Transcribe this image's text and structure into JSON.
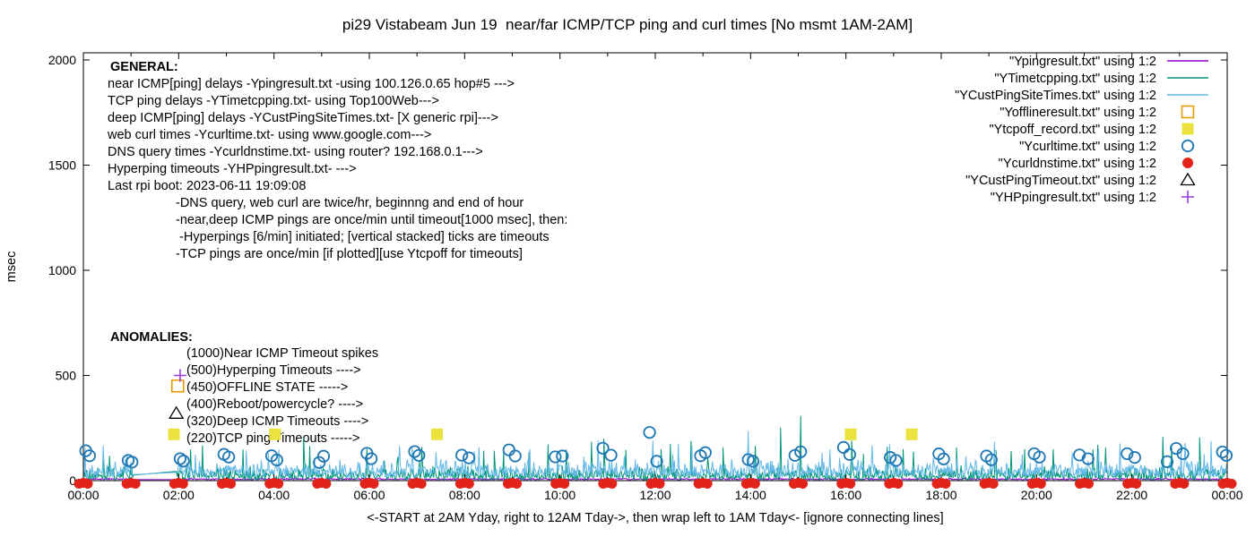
{
  "title": "pi29 Vistabeam Jun 19  near/far ICMP/TCP ping and curl times [No msmt 1AM-2AM]",
  "axes": {
    "y_label": "msec",
    "x_label": "<-START at 2AM Yday, right to 12AM Tday->, then wrap left to 1AM Tday<- [ignore connecting lines]",
    "y_ticks": [
      "0",
      "500",
      "1000",
      "1500",
      "2000"
    ],
    "x_tick_labels": [
      "00:00",
      "02:00",
      "04:00",
      "06:00",
      "08:00",
      "10:00",
      "12:00",
      "14:00",
      "16:00",
      "18:00",
      "20:00",
      "22:00",
      "00:00"
    ]
  },
  "legend": {
    "entries": [
      {
        "label": "\"Ypingresult.txt\" using 1:2",
        "marker": "line",
        "color": "#9400d3"
      },
      {
        "label": "\"YTimetcpping.txt\" using 1:2",
        "marker": "line",
        "color": "#009578"
      },
      {
        "label": "\"YCustPingSiteTimes.txt\" using 1:2",
        "marker": "line",
        "color": "#63b8e8"
      },
      {
        "label": "\"Yofflineresult.txt\" using 1:2",
        "marker": "square-open",
        "color": "#e69b00"
      },
      {
        "label": "\"Ytcpoff_record.txt\" using 1:2",
        "marker": "square-filled",
        "color": "#ebe13f"
      },
      {
        "label": "\"Ycurltime.txt\" using 1:2",
        "marker": "circle-open",
        "color": "#1f78b4"
      },
      {
        "label": "\"Ycurldnstime.txt\" using 1:2",
        "marker": "circle-filled",
        "color": "#e2231a"
      },
      {
        "label": "\"YCustPingTimeout.txt\" using 1:2",
        "marker": "triangle-open",
        "color": "#000000"
      },
      {
        "label": "\"YHPpingresult.txt\" using 1:2",
        "marker": "plus",
        "color": "#9a3be0"
      }
    ]
  },
  "notes_general": {
    "heading": "GENERAL:",
    "lines": [
      "near ICMP[ping] delays -Ypingresult.txt -using 100.126.0.65 hop#5 --->",
      "TCP ping delays -YTimetcpping.txt- using Top100Web--->",
      "deep ICMP[ping] delays -YCustPingSiteTimes.txt- [X generic rpi]--->",
      "web curl times -Ycurltime.txt- using www.google.com--->",
      "DNS query times -Ycurldnstime.txt- using router? 192.168.0.1--->",
      "Hyperping timeouts -YHPpingresult.txt- --->",
      "Last rpi boot: 2023-06-11 19:09:08"
    ],
    "indented_lines": [
      "-DNS query, web curl are twice/hr, beginnng and end of hour",
      "-near,deep ICMP pings are once/min until timeout[1000 msec], then:",
      " -Hyperpings [6/min] initiated; [vertical stacked] ticks are timeouts",
      "-TCP pings are once/min [if plotted][use Ytcpoff for timeouts]"
    ]
  },
  "notes_anomalies": {
    "heading": "ANOMALIES:",
    "lines": [
      "(1000)Near ICMP Timeout spikes",
      "(500)Hyperping Timeouts ---->",
      "(450)OFFLINE STATE ----->",
      "(400)Reboot/powercycle? ---->",
      "(320)Deep ICMP Timeouts ---->",
      "(220)TCP ping Timeouts ----->"
    ]
  },
  "chart_data": {
    "type": "line",
    "title": "pi29 Vistabeam Jun 19  near/far ICMP/TCP ping and curl times [No msmt 1AM-2AM]",
    "xlabel": "<-START at 2AM Yday, right to 12AM Tday->, then wrap left to 1AM Tday<- [ignore connecting lines]",
    "ylabel": "msec",
    "x_unit": "hours",
    "xlim_hours": [
      0,
      24
    ],
    "ylim": [
      0,
      2000
    ],
    "grid": false,
    "legend_position": "top-right-inside",
    "measurement_gap_hours": [
      1.05,
      1.95
    ],
    "noise_seed": 20230619,
    "series": [
      {
        "name": "Ypingresult.txt",
        "style": "line",
        "color": "#9400d3",
        "kind": "noise",
        "base": 4,
        "amp": 9,
        "high_chance": 0,
        "high_min": 0,
        "high_span": 0,
        "spikes": []
      },
      {
        "name": "YTimetcpping.txt",
        "style": "line",
        "color": "#009578",
        "kind": "noise",
        "base": 2,
        "amp": 72,
        "high_chance": 0.016,
        "high_min": 85,
        "high_span": 90,
        "spikes": [
          [
            0.42,
            133
          ],
          [
            2.5,
            168
          ],
          [
            3.35,
            148
          ],
          [
            4.62,
            205
          ],
          [
            5.95,
            152
          ],
          [
            7.1,
            160
          ],
          [
            8.62,
            142
          ],
          [
            9.35,
            135
          ],
          [
            9.75,
            172
          ],
          [
            10.66,
            185
          ],
          [
            10.92,
            200
          ],
          [
            12.12,
            150
          ],
          [
            12.75,
            188
          ],
          [
            13.42,
            158
          ],
          [
            14.1,
            165
          ],
          [
            14.63,
            252
          ],
          [
            15.05,
            308
          ],
          [
            16.12,
            190
          ],
          [
            17.2,
            150
          ],
          [
            18.32,
            158
          ],
          [
            19.12,
            144
          ],
          [
            20.35,
            150
          ],
          [
            21.45,
            158
          ],
          [
            22.65,
            208
          ],
          [
            23.42,
            205
          ]
        ]
      },
      {
        "name": "YCustPingSiteTimes.txt",
        "style": "line",
        "color": "#63b8e8",
        "kind": "noise",
        "base": 15,
        "amp": 95,
        "high_chance": 0.022,
        "high_min": 108,
        "high_span": 85,
        "spikes": [
          [
            4.1,
            148
          ],
          [
            8.2,
            140
          ],
          [
            13.95,
            235
          ],
          [
            16.55,
            168
          ],
          [
            21.3,
            150
          ],
          [
            23.66,
            188
          ]
        ]
      },
      {
        "name": "Yofflineresult.txt",
        "style": "square-open",
        "color": "#e69b00",
        "points": [
          [
            1.98,
            450
          ]
        ]
      },
      {
        "name": "Ytcpoff_record.txt",
        "style": "square-filled",
        "color": "#ebe13f",
        "points": [
          [
            1.9,
            220
          ],
          [
            4.02,
            220
          ],
          [
            7.42,
            220
          ],
          [
            16.1,
            220
          ],
          [
            17.38,
            220
          ]
        ]
      },
      {
        "name": "Ycurltime.txt",
        "style": "circle-open",
        "color": "#1f78b4",
        "points": [
          [
            0.05,
            142
          ],
          [
            0.13,
            118
          ],
          [
            0.94,
            96
          ],
          [
            1.02,
            88
          ],
          [
            2.03,
            104
          ],
          [
            2.1,
            93
          ],
          [
            2.95,
            125
          ],
          [
            3.05,
            112
          ],
          [
            3.95,
            118
          ],
          [
            4.06,
            98
          ],
          [
            4.95,
            86
          ],
          [
            5.04,
            116
          ],
          [
            5.95,
            130
          ],
          [
            6.04,
            104
          ],
          [
            6.95,
            138
          ],
          [
            7.04,
            120
          ],
          [
            7.94,
            121
          ],
          [
            8.09,
            108
          ],
          [
            8.93,
            146
          ],
          [
            9.06,
            117
          ],
          [
            9.9,
            113
          ],
          [
            10.05,
            117
          ],
          [
            10.9,
            154
          ],
          [
            11.07,
            121
          ],
          [
            11.88,
            229
          ],
          [
            12.03,
            92
          ],
          [
            12.95,
            118
          ],
          [
            13.05,
            133
          ],
          [
            13.95,
            100
          ],
          [
            14.05,
            92
          ],
          [
            14.93,
            120
          ],
          [
            15.05,
            137
          ],
          [
            15.95,
            158
          ],
          [
            16.08,
            124
          ],
          [
            16.93,
            110
          ],
          [
            17.05,
            96
          ],
          [
            17.95,
            127
          ],
          [
            18.05,
            103
          ],
          [
            18.95,
            117
          ],
          [
            19.05,
            99
          ],
          [
            19.95,
            128
          ],
          [
            20.06,
            112
          ],
          [
            20.9,
            122
          ],
          [
            21.08,
            104
          ],
          [
            21.9,
            128
          ],
          [
            22.06,
            110
          ],
          [
            22.74,
            90
          ],
          [
            22.93,
            153
          ],
          [
            23.07,
            128
          ],
          [
            23.9,
            136
          ],
          [
            23.98,
            120
          ]
        ]
      },
      {
        "name": "Ycurldnstime.txt",
        "style": "circle-filled",
        "color": "#e2231a",
        "cluster_hours": [
          0,
          1,
          2,
          3,
          4,
          5,
          6,
          7,
          8,
          9,
          10,
          11,
          12,
          13,
          14,
          15,
          16,
          17,
          18,
          19,
          20,
          21,
          22,
          23,
          24
        ],
        "value": 2
      },
      {
        "name": "YCustPingTimeout.txt",
        "style": "triangle-open",
        "color": "#000000",
        "points": [
          [
            1.95,
            320
          ]
        ]
      },
      {
        "name": "YHPpingresult.txt",
        "style": "plus",
        "color": "#9a3be0",
        "points": [
          [
            2.03,
            500
          ]
        ]
      }
    ]
  }
}
